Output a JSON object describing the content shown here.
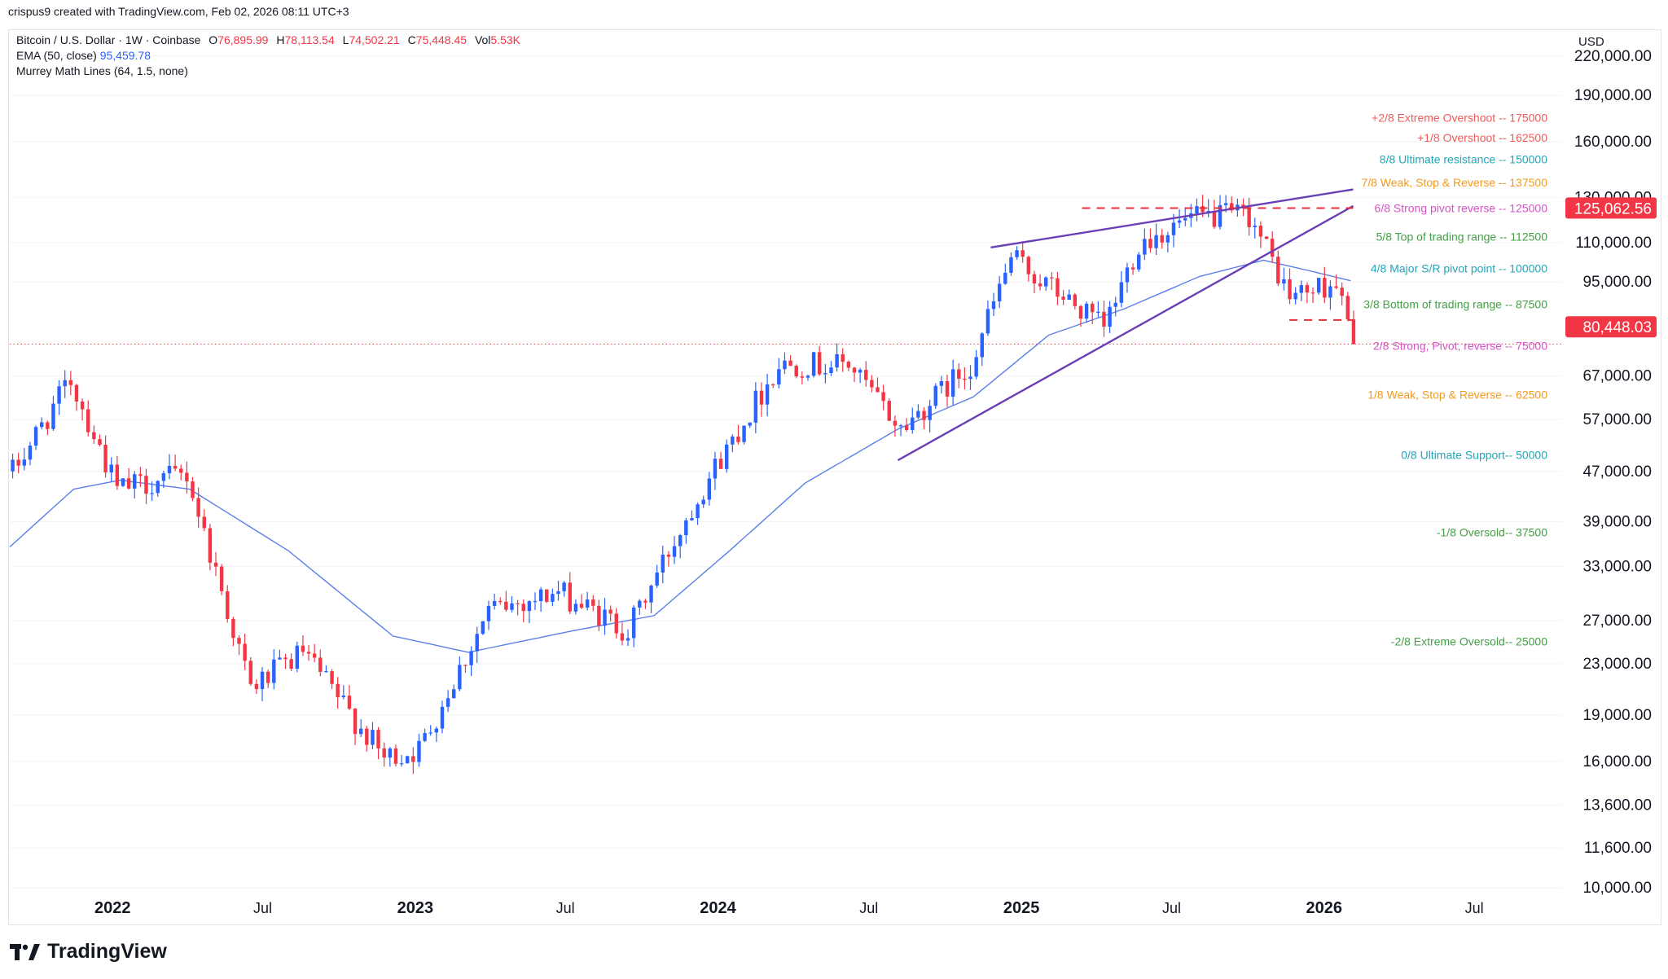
{
  "attribution": "crispus9 created with TradingView.com, Feb 02, 2026 08:11 UTC+3",
  "legend": {
    "symbol": "Bitcoin / U.S. Dollar · 1W · Coinbase",
    "open_label": "O",
    "open": "76,895.99",
    "high_label": "H",
    "high": "78,113.54",
    "low_label": "L",
    "low": "74,502.21",
    "close_label": "C",
    "close": "75,448.45",
    "vol_label": "Vol",
    "vol": "5.53K",
    "ema_label": "EMA (50, close)",
    "ema_value": "95,459.78",
    "murrey_label": "Murrey Math Lines (64, 1.5, none)"
  },
  "brand": "TradingView",
  "colors": {
    "up": "#2962ff",
    "down": "#f23645",
    "ema": "#5b7fe8",
    "wedge": "#6a3fb5",
    "price_tag": "#f23645"
  },
  "chart_data": {
    "type": "candlestick",
    "currency_label": "USD",
    "log_scale": true,
    "y_ticks": [
      {
        "value": 220000,
        "label": "220,000.00"
      },
      {
        "value": 190000,
        "label": "190,000.00"
      },
      {
        "value": 160000,
        "label": "160,000.00"
      },
      {
        "value": 130000,
        "label": "130,000.00"
      },
      {
        "value": 110000,
        "label": "110,000.00"
      },
      {
        "value": 95000,
        "label": "95,000.00"
      },
      {
        "value": 67000,
        "label": "67,000.00"
      },
      {
        "value": 57000,
        "label": "57,000.00"
      },
      {
        "value": 47000,
        "label": "47,000.00"
      },
      {
        "value": 39000,
        "label": "39,000.00"
      },
      {
        "value": 33000,
        "label": "33,000.00"
      },
      {
        "value": 27000,
        "label": "27,000.00"
      },
      {
        "value": 23000,
        "label": "23,000.00"
      },
      {
        "value": 19000,
        "label": "19,000.00"
      },
      {
        "value": 16000,
        "label": "16,000.00"
      },
      {
        "value": 13600,
        "label": "13,600.00"
      },
      {
        "value": 11600,
        "label": "11,600.00"
      },
      {
        "value": 10000,
        "label": "10,000.00"
      }
    ],
    "x_ticks": [
      {
        "date": "2022-01-01",
        "label": "2022",
        "bold": true
      },
      {
        "date": "2022-07-01",
        "label": "Jul",
        "bold": false
      },
      {
        "date": "2023-01-01",
        "label": "2023",
        "bold": true
      },
      {
        "date": "2023-07-01",
        "label": "Jul",
        "bold": false
      },
      {
        "date": "2024-01-01",
        "label": "2024",
        "bold": true
      },
      {
        "date": "2024-07-01",
        "label": "Jul",
        "bold": false
      },
      {
        "date": "2025-01-01",
        "label": "2025",
        "bold": true
      },
      {
        "date": "2025-07-01",
        "label": "Jul",
        "bold": false
      },
      {
        "date": "2026-01-01",
        "label": "2026",
        "bold": true
      },
      {
        "date": "2026-07-01",
        "label": "Jul",
        "bold": false
      }
    ],
    "x_range": [
      "2021-08-30",
      "2026-10-15"
    ],
    "y_range": [
      9000,
      240000
    ],
    "price_tags": [
      {
        "value": 125062.56,
        "label": "125,062.56"
      },
      {
        "value": 80448.03,
        "label": "80,448.03"
      }
    ],
    "last_price_line": 75448.45,
    "murrey_lines": [
      {
        "value": 175000,
        "label": "+2/8 Extreme Overshoot --  175000",
        "color": "#f05a5a"
      },
      {
        "value": 162500,
        "label": "+1/8 Overshoot --  162500",
        "color": "#f05a5a"
      },
      {
        "value": 150000,
        "label": "8/8 Ultimate resistance --  150000",
        "color": "#22a6b8"
      },
      {
        "value": 137500,
        "label": "7/8 Weak, Stop & Reverse --  137500",
        "color": "#f39a1e"
      },
      {
        "value": 125000,
        "label": "6/8 Strong pivot reverse --  125000",
        "color": "#d653c8"
      },
      {
        "value": 112500,
        "label": "5/8 Top of trading range --  112500",
        "color": "#43a047"
      },
      {
        "value": 100000,
        "label": "4/8 Major S/R pivot point --  100000",
        "color": "#22a6b8"
      },
      {
        "value": 87500,
        "label": "3/8 Bottom of trading range --  87500",
        "color": "#43a047"
      },
      {
        "value": 75000,
        "label": "2/8 Strong, Pivot, reverse --  75000",
        "color": "#d653c8"
      },
      {
        "value": 62500,
        "label": "1/8 Weak, Stop & Reverse --  62500",
        "color": "#f39a1e"
      },
      {
        "value": 50000,
        "label": "0/8 Ultimate Support--  50000",
        "color": "#22a6b8"
      },
      {
        "value": 37500,
        "label": "-1/8 Oversold--  37500",
        "color": "#43a047"
      },
      {
        "value": 25000,
        "label": "-2/8 Extreme Oversold--  25000",
        "color": "#43a047"
      }
    ],
    "resistance_dashed": {
      "value": 125000,
      "from": "2025-03-15",
      "to": "2026-02-05"
    },
    "support_dashed": {
      "value": 82500,
      "from": "2025-11-20",
      "to": "2026-02-05"
    },
    "wedge_upper": [
      [
        "2024-11-25",
        108000
      ],
      [
        "2026-02-05",
        134000
      ]
    ],
    "wedge_lower": [
      [
        "2024-08-05",
        49000
      ],
      [
        "2026-02-05",
        126000
      ]
    ],
    "anchors": [
      [
        "2021-08-30",
        47000
      ],
      [
        "2021-11-08",
        66000
      ],
      [
        "2022-01-03",
        44000
      ],
      [
        "2022-03-28",
        46500
      ],
      [
        "2022-06-13",
        21000
      ],
      [
        "2022-08-15",
        24000
      ],
      [
        "2022-11-21",
        16200
      ],
      [
        "2023-01-02",
        16700
      ],
      [
        "2023-03-27",
        28000
      ],
      [
        "2023-06-19",
        30000
      ],
      [
        "2023-09-11",
        26000
      ],
      [
        "2023-12-04",
        43000
      ],
      [
        "2024-03-11",
        70000
      ],
      [
        "2024-06-03",
        70000
      ],
      [
        "2024-08-05",
        55000
      ],
      [
        "2024-10-28",
        70000
      ],
      [
        "2024-12-16",
        104000
      ],
      [
        "2025-04-07",
        80000
      ],
      [
        "2025-05-19",
        110000
      ],
      [
        "2025-07-14",
        119000
      ],
      [
        "2025-08-11",
        121000
      ],
      [
        "2025-09-29",
        122000
      ],
      [
        "2025-11-17",
        90000
      ],
      [
        "2026-01-12",
        95000
      ],
      [
        "2026-02-02",
        75448
      ]
    ],
    "ema_anchors": [
      [
        "2021-08-30",
        35500
      ],
      [
        "2021-11-15",
        44000
      ],
      [
        "2022-01-10",
        45500
      ],
      [
        "2022-04-04",
        44000
      ],
      [
        "2022-08-01",
        35000
      ],
      [
        "2022-12-05",
        25500
      ],
      [
        "2023-03-06",
        24000
      ],
      [
        "2023-07-10",
        26000
      ],
      [
        "2023-10-16",
        27500
      ],
      [
        "2024-01-15",
        35000
      ],
      [
        "2024-04-15",
        45000
      ],
      [
        "2024-08-05",
        55000
      ],
      [
        "2024-11-04",
        62000
      ],
      [
        "2025-02-03",
        78000
      ],
      [
        "2025-05-05",
        86000
      ],
      [
        "2025-08-04",
        97000
      ],
      [
        "2025-10-20",
        103000
      ],
      [
        "2025-12-15",
        99000
      ],
      [
        "2026-02-02",
        95459
      ]
    ]
  }
}
